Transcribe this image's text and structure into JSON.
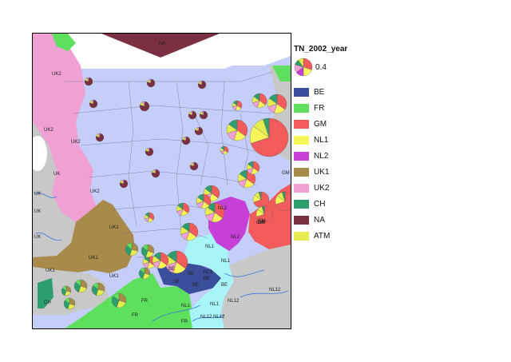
{
  "legend": {
    "title": "TN_2002_year",
    "size_value": "0.4",
    "items": [
      {
        "label": "BE",
        "color": "#3a4e9c"
      },
      {
        "label": "FR",
        "color": "#5ee05e"
      },
      {
        "label": "GM",
        "color": "#f25b5b"
      },
      {
        "label": "NL1",
        "color": "#f6f65a"
      },
      {
        "label": "NL2",
        "color": "#c640d8"
      },
      {
        "label": "UK1",
        "color": "#a88a4a"
      },
      {
        "label": "UK2",
        "color": "#f0a0d2"
      },
      {
        "label": "CH",
        "color": "#2e9e6e"
      },
      {
        "label": "NA",
        "color": "#7a3040"
      },
      {
        "label": "ATM",
        "color": "#e4ec50"
      }
    ]
  },
  "map": {
    "region_labels": [
      {
        "text": "NA"
      },
      {
        "text": "UK2"
      },
      {
        "text": "UK2"
      },
      {
        "text": "UK2"
      },
      {
        "text": "UK2"
      },
      {
        "text": "UK"
      },
      {
        "text": "UK"
      },
      {
        "text": "UK"
      },
      {
        "text": "UK"
      },
      {
        "text": "UK1"
      },
      {
        "text": "UK1"
      },
      {
        "text": "UK1"
      },
      {
        "text": "UK1"
      },
      {
        "text": "NL2"
      },
      {
        "text": "NL2"
      },
      {
        "text": "GM"
      },
      {
        "text": "GM"
      },
      {
        "text": "GM"
      },
      {
        "text": "GM"
      },
      {
        "text": "NL1"
      },
      {
        "text": "NL1"
      },
      {
        "text": "NL1"
      },
      {
        "text": "NL1"
      },
      {
        "text": "NL1"
      },
      {
        "text": "NL12"
      },
      {
        "text": "NL12"
      },
      {
        "text": "NL12"
      },
      {
        "text": "NL12"
      },
      {
        "text": "BE"
      },
      {
        "text": "BE"
      },
      {
        "text": "BE"
      },
      {
        "text": "BE"
      },
      {
        "text": "BE"
      },
      {
        "text": "SE"
      },
      {
        "text": "FR"
      },
      {
        "text": "FR"
      },
      {
        "text": "FR"
      },
      {
        "text": "CH"
      }
    ]
  }
}
